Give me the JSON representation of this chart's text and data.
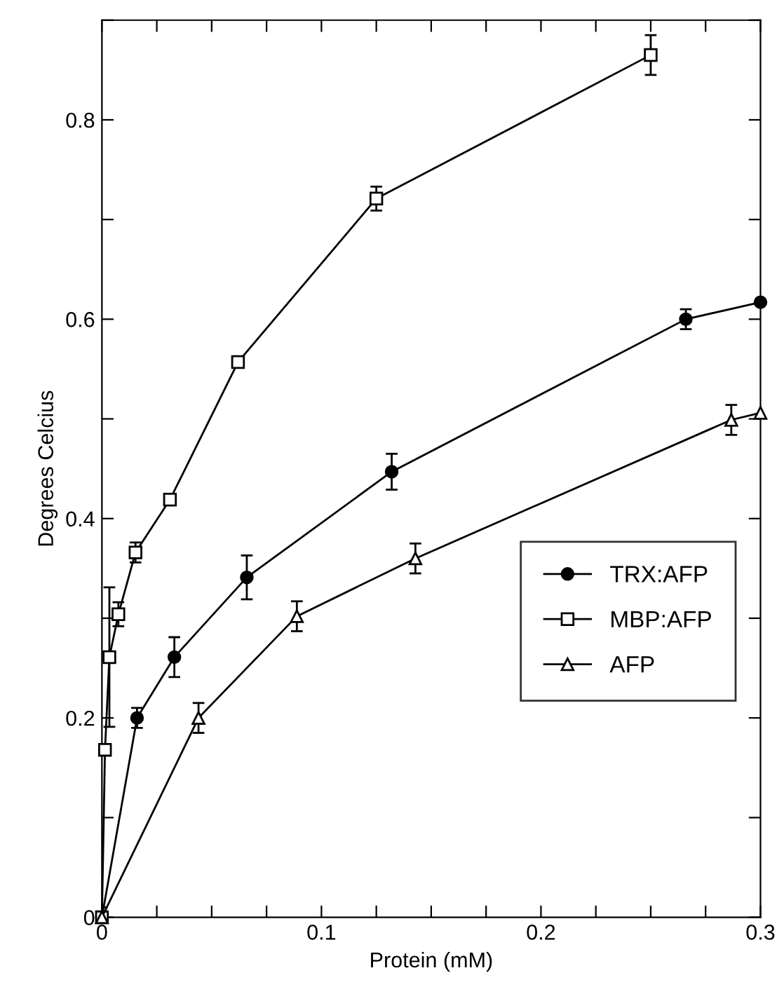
{
  "chart_data": {
    "type": "line",
    "xlabel": "Protein (mM)",
    "ylabel": "Degrees Celcius",
    "xlim": [
      0,
      0.3
    ],
    "ylim": [
      0,
      0.9
    ],
    "xticks": [
      0,
      {
        "value": 0.025,
        "label": null
      },
      {
        "value": 0.05,
        "label": null
      },
      {
        "value": 0.075,
        "label": null
      },
      0.1,
      {
        "value": 0.125,
        "label": null
      },
      {
        "value": 0.15,
        "label": null
      },
      {
        "value": 0.175,
        "label": null
      },
      0.2,
      {
        "value": 0.225,
        "label": null
      },
      {
        "value": 0.25,
        "label": null
      },
      {
        "value": 0.275,
        "label": null
      },
      0.3
    ],
    "yticks": [
      0,
      {
        "value": 0.1,
        "label": null
      },
      0.2,
      {
        "value": 0.3,
        "label": null
      },
      0.4,
      {
        "value": 0.5,
        "label": null
      },
      0.6,
      {
        "value": 0.7,
        "label": null
      },
      0.8,
      {
        "value": 0.9,
        "label": null
      }
    ],
    "grid": false,
    "legend": "right",
    "line_style": "solid",
    "series": [
      {
        "name": "TRX:AFP",
        "color": "#000000",
        "marker": "circle",
        "x": [
          0,
          0.016,
          0.033,
          0.066,
          0.132,
          0.266,
          0.3
        ],
        "values": [
          0,
          0.2,
          0.261,
          0.341,
          0.447,
          0.6,
          0.617
        ],
        "errors": [
          null,
          0.01,
          0.02,
          0.022,
          0.018,
          0.01,
          null
        ]
      },
      {
        "name": "MBP:AFP",
        "color": "#000000",
        "marker": "square",
        "x": [
          0,
          0.0014,
          0.0034,
          0.0075,
          0.0153,
          0.031,
          0.062,
          0.125,
          0.25
        ],
        "values": [
          0,
          0.168,
          0.261,
          0.304,
          0.366,
          0.419,
          0.557,
          0.721,
          0.865
        ],
        "errors": [
          0.01,
          null,
          0.07,
          0.012,
          0.01,
          null,
          null,
          0.012,
          0.02
        ]
      },
      {
        "name": "AFP",
        "color": "#000000",
        "marker": "triangle",
        "x": [
          0,
          0.044,
          0.0888,
          0.1428,
          0.2867,
          0.3
        ],
        "values": [
          0,
          0.2,
          0.302,
          0.36,
          0.499,
          0.506
        ],
        "errors": [
          null,
          0.015,
          0.015,
          0.015,
          0.015,
          null
        ]
      }
    ]
  }
}
